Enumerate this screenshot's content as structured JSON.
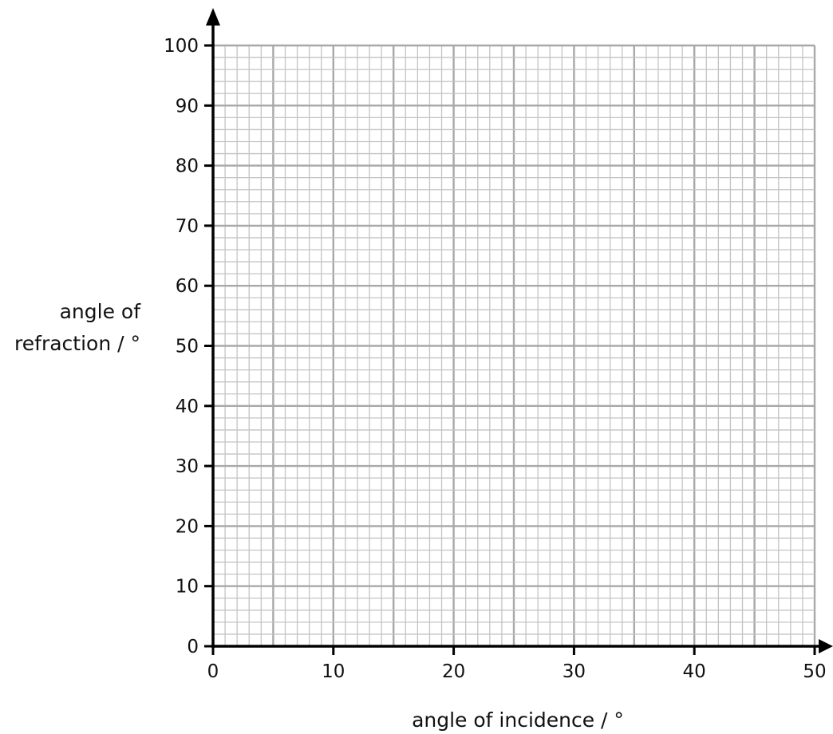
{
  "chart_data": {
    "type": "scatter",
    "title": "",
    "xlabel": "angle of incidence / °",
    "ylabel_lines": [
      "angle of",
      "refraction / °"
    ],
    "xlim": [
      0,
      50
    ],
    "ylim": [
      0,
      100
    ],
    "x_ticks": [
      0,
      10,
      20,
      30,
      40,
      50
    ],
    "x_tick_labels": [
      "0",
      "10",
      "20",
      "30",
      "40",
      "50"
    ],
    "y_ticks": [
      0,
      10,
      20,
      30,
      40,
      50,
      60,
      70,
      80,
      90,
      100
    ],
    "y_tick_labels": [
      "0",
      "10",
      "20",
      "30",
      "40",
      "50",
      "60",
      "70",
      "80",
      "90",
      "100"
    ],
    "grid": true,
    "grid_minor_x_step": 1,
    "grid_mid_x_step": 5,
    "grid_minor_y_step": 2,
    "grid_mid_y_step": 10,
    "series": [],
    "colors": {
      "axis": "#000000",
      "grid_minor": "#c4c4c4",
      "grid_major": "#a8a8a8",
      "text": "#111111"
    }
  }
}
